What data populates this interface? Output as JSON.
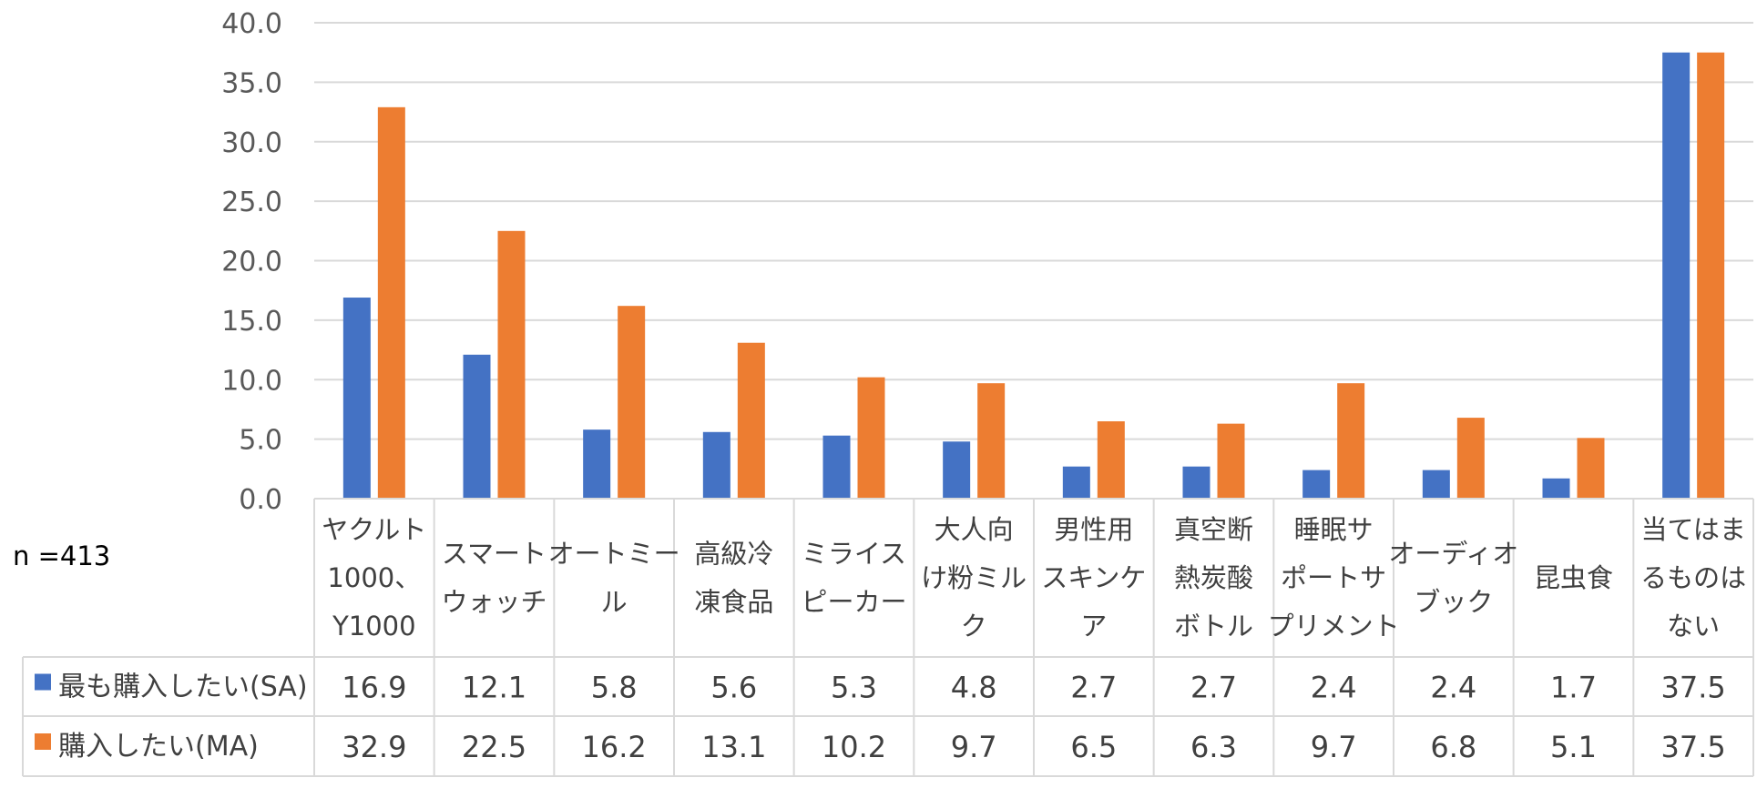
{
  "chart_data": {
    "type": "bar",
    "n_label": "n =413",
    "ylim": [
      0,
      40
    ],
    "yticks": [
      "0.0",
      "5.0",
      "10.0",
      "15.0",
      "20.0",
      "25.0",
      "30.0",
      "35.0",
      "40.0"
    ],
    "categories": [
      [
        "ヤクルト",
        "1000、",
        "Y1000"
      ],
      [
        "スマート",
        "ウォッチ"
      ],
      [
        "オートミー",
        "ル"
      ],
      [
        "高級冷",
        "凍食品"
      ],
      [
        "ミライス",
        "ピーカー"
      ],
      [
        "大人向",
        "け粉ミル",
        "ク"
      ],
      [
        "男性用",
        "スキンケ",
        "ア"
      ],
      [
        "真空断",
        "熱炭酸",
        "ボトル"
      ],
      [
        "睡眠サ",
        "ポートサ",
        "プリメント"
      ],
      [
        "オーディオ",
        "ブック"
      ],
      [
        "昆虫食"
      ],
      [
        "当てはま",
        "るものは",
        "ない"
      ]
    ],
    "series": [
      {
        "name": "最も購入したい(SA)",
        "color": "#4472C4",
        "values": [
          16.9,
          12.1,
          5.8,
          5.6,
          5.3,
          4.8,
          2.7,
          2.7,
          2.4,
          2.4,
          1.7,
          37.5
        ],
        "labels": [
          "16.9",
          "12.1",
          "5.8",
          "5.6",
          "5.3",
          "4.8",
          "2.7",
          "2.7",
          "2.4",
          "2.4",
          "1.7",
          "37.5"
        ]
      },
      {
        "name": "購入したい(MA)",
        "color": "#ED7D31",
        "values": [
          32.9,
          22.5,
          16.2,
          13.1,
          10.2,
          9.7,
          6.5,
          6.3,
          9.7,
          6.8,
          5.1,
          37.5
        ],
        "labels": [
          "32.9",
          "22.5",
          "16.2",
          "13.1",
          "10.2",
          "9.7",
          "6.5",
          "6.3",
          "9.7",
          "6.8",
          "5.1",
          "37.5"
        ]
      }
    ]
  }
}
